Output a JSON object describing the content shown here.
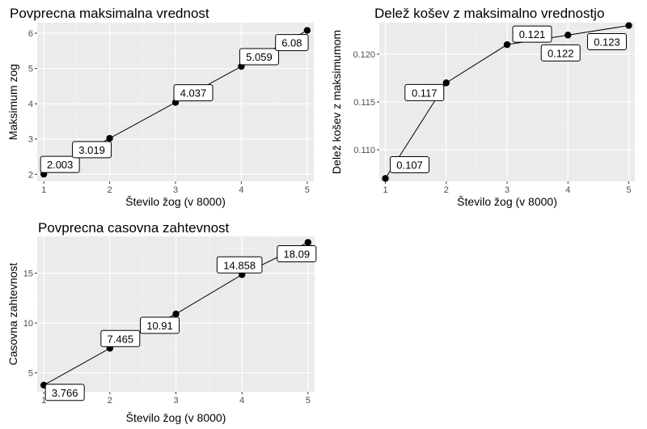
{
  "chart_data": [
    {
      "id": "chart-max",
      "type": "line",
      "title": "Povprecna maksimalna vrednost",
      "xlabel": "Število žog (v 8000)",
      "ylabel": "Maksimum zog",
      "x": [
        1,
        2,
        3,
        4,
        5
      ],
      "values": [
        2.003,
        3.019,
        4.037,
        5.059,
        6.08
      ],
      "data_labels": [
        "2.003",
        "3.019",
        "4.037",
        "5.059",
        "6.08"
      ],
      "x_ticks": [
        "1",
        "2",
        "3",
        "4",
        "5"
      ],
      "y_ticks": [
        "2",
        "3",
        "4",
        "5",
        "6"
      ],
      "xlim": [
        0.9,
        5.1
      ],
      "ylim": [
        1.8,
        6.3
      ],
      "grid": true,
      "point_color": "#000000",
      "panel_color": "#ebebeb"
    },
    {
      "id": "chart-share",
      "type": "line",
      "title": "Delež košev z maksimalno vrednostjo",
      "xlabel": "Število žog (v 8000)",
      "ylabel": "Delež košev z maksimumom",
      "x": [
        1,
        2,
        3,
        4,
        5
      ],
      "values": [
        0.107,
        0.117,
        0.121,
        0.122,
        0.123
      ],
      "data_labels": [
        "0.107",
        "0.117",
        "0.121",
        "0.122",
        "0.123"
      ],
      "x_ticks": [
        "1",
        "2",
        "3",
        "4",
        "5"
      ],
      "y_ticks": [
        "0.110",
        "0.115",
        "0.120"
      ],
      "xlim": [
        0.9,
        5.1
      ],
      "ylim": [
        0.1067,
        0.1233
      ],
      "grid": true,
      "point_color": "#000000",
      "panel_color": "#ebebeb"
    },
    {
      "id": "chart-time",
      "type": "line",
      "title": "Povprecna casovna zahtevnost",
      "xlabel": "Število žog (v 8000)",
      "ylabel": "Casovna zahtevnost",
      "x": [
        1,
        2,
        3,
        4,
        5
      ],
      "values": [
        3.766,
        7.465,
        10.91,
        14.858,
        18.09
      ],
      "data_labels": [
        "3.766",
        "7.465",
        "10.91",
        "14.858",
        "18.09"
      ],
      "x_ticks": [
        "1",
        "2",
        "3",
        "4",
        "5"
      ],
      "y_ticks": [
        "5",
        "10",
        "15"
      ],
      "xlim": [
        0.9,
        5.1
      ],
      "ylim": [
        3.1,
        18.7
      ],
      "grid": true,
      "point_color": "#000000",
      "panel_color": "#ebebeb"
    }
  ]
}
